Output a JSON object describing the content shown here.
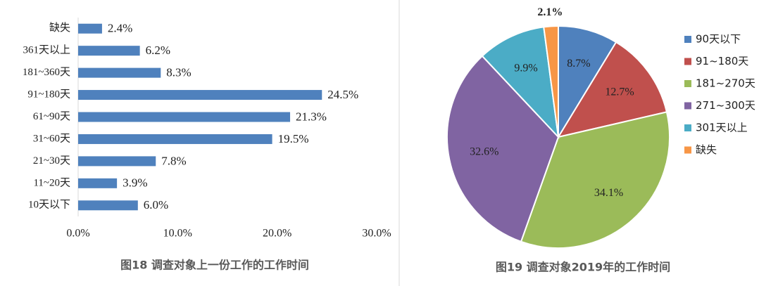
{
  "chart_data": [
    {
      "type": "bar",
      "orientation": "horizontal",
      "title": "图18 调查对象上一份工作的工作时间",
      "categories": [
        "缺失",
        "361天以上",
        "181~360天",
        "91~180天",
        "61~90天",
        "31~60天",
        "21~30天",
        "11~20天",
        "10天以下"
      ],
      "values": [
        2.4,
        6.2,
        8.3,
        24.5,
        21.3,
        19.5,
        7.8,
        3.9,
        6.0
      ],
      "value_labels": [
        "2.4%",
        "6.2%",
        "8.3%",
        "24.5%",
        "21.3%",
        "19.5%",
        "7.8%",
        "3.9%",
        "6.0%"
      ],
      "color": "#4f81bd",
      "xlim": [
        0,
        30
      ],
      "xticks": [
        {
          "value": 0,
          "label": "0.0%"
        },
        {
          "value": 10,
          "label": "10.0%"
        },
        {
          "value": 20,
          "label": "20.0%"
        },
        {
          "value": 30,
          "label": "30.0%"
        }
      ],
      "grid": false
    },
    {
      "type": "pie",
      "title": "图19 调查对象2019年的工作时间",
      "categories": [
        "90天以下",
        "91~180天",
        "181~270天",
        "271~300天",
        "301天以上",
        "缺失"
      ],
      "values": [
        8.7,
        12.7,
        34.1,
        32.6,
        9.9,
        2.1
      ],
      "value_labels": [
        "8.7%",
        "12.7%",
        "34.1%",
        "32.6%",
        "9.9%",
        "2.1%"
      ],
      "colors": [
        "#4f81bd",
        "#c0504d",
        "#9bbb59",
        "#8064a2",
        "#4bacc6",
        "#f79646"
      ],
      "legend": "right"
    }
  ]
}
